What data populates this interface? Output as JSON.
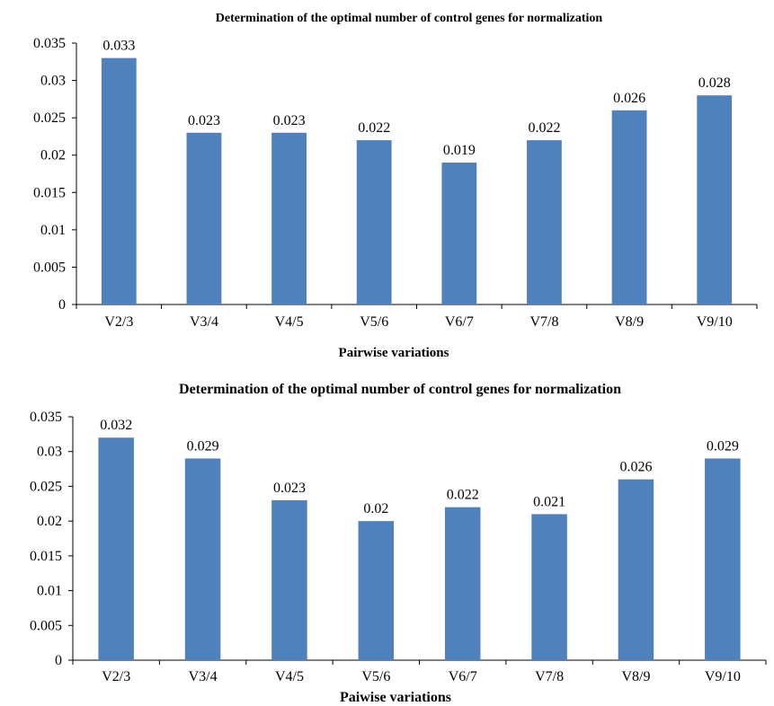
{
  "chart_data": [
    {
      "type": "bar",
      "title": "Determination of the optimal number of control genes for normalization",
      "xlabel": "Pairwise variations",
      "ylabel": "",
      "categories": [
        "V2/3",
        "V3/4",
        "V4/5",
        "V5/6",
        "V6/7",
        "V7/8",
        "V8/9",
        "V9/10"
      ],
      "values": [
        0.033,
        0.023,
        0.023,
        0.022,
        0.019,
        0.022,
        0.026,
        0.028
      ],
      "data_labels": [
        "0.033",
        "0.023",
        "0.023",
        "0.022",
        "0.019",
        "0.022",
        "0.026",
        "0.028"
      ],
      "yticks": [
        "0",
        "0.005",
        "0.01",
        "0.015",
        "0.02",
        "0.025",
        "0.03",
        "0.035"
      ],
      "ylim": [
        0,
        0.035
      ],
      "grid": false,
      "bar_color": "#4f81bd"
    },
    {
      "type": "bar",
      "title": "Determination of the optimal number of control genes for normalization",
      "xlabel": "Paiwise variations",
      "ylabel": "",
      "categories": [
        "V2/3",
        "V3/4",
        "V4/5",
        "V5/6",
        "V6/7",
        "V7/8",
        "V8/9",
        "V9/10"
      ],
      "values": [
        0.032,
        0.029,
        0.023,
        0.02,
        0.022,
        0.021,
        0.026,
        0.029
      ],
      "data_labels": [
        "0.032",
        "0.029",
        "0.023",
        "0.02",
        "0.022",
        "0.021",
        "0.026",
        "0.029"
      ],
      "yticks": [
        "0",
        "0.005",
        "0.01",
        "0.015",
        "0.02",
        "0.025",
        "0.03",
        "0.035"
      ],
      "ylim": [
        0,
        0.035
      ],
      "grid": false,
      "bar_color": "#4f81bd"
    }
  ]
}
